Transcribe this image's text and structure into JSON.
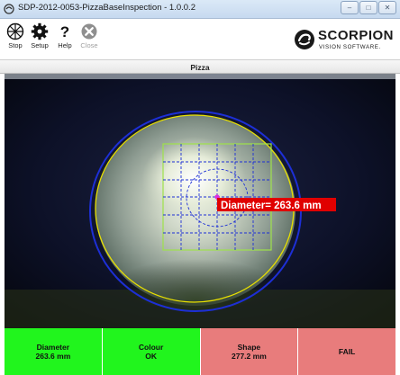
{
  "window": {
    "title": "SDP-2012-0053-PizzaBaseInspection - 1.0.0.2"
  },
  "toolbar": {
    "buttons": [
      {
        "label": "Stop",
        "icon": "stop-icon"
      },
      {
        "label": "Setup",
        "icon": "gear-icon"
      },
      {
        "label": "Help",
        "icon": "help-icon"
      },
      {
        "label": "Close",
        "icon": "close-icon"
      }
    ]
  },
  "logo": {
    "name": "SCORPION",
    "tagline": "VISION SOFTWARE."
  },
  "panel": {
    "title": "Pizza"
  },
  "viewer": {
    "measurement_label": "Diameter= 263.6 mm"
  },
  "results": [
    {
      "name": "Diameter",
      "value": "263.6 mm",
      "status": "pass",
      "color": "#21f51d"
    },
    {
      "name": "Colour",
      "value": "OK",
      "status": "pass",
      "color": "#21f51d"
    },
    {
      "name": "Shape",
      "value": "277.2 mm",
      "status": "fail",
      "color": "#e87c7c"
    },
    {
      "name": "FAIL",
      "value": "",
      "status": "fail",
      "color": "#e87c7c"
    }
  ],
  "colors": {
    "pass": "#21f51d",
    "fail": "#e87c7c",
    "label_bg": "#e00000",
    "circle_outer": "#1d2fd6",
    "circle_inner": "#e8e000",
    "grid_border": "#9ee24a",
    "grid_lines": "#1d2fd6"
  }
}
